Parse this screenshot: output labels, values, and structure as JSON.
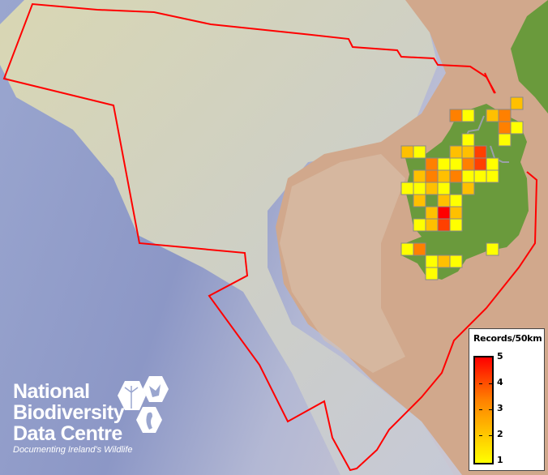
{
  "legend": {
    "title": "Records/50km",
    "labels": [
      "5",
      "4",
      "3",
      "2",
      "1"
    ],
    "color_scale": {
      "1": "#ffff00",
      "2": "#ffc000",
      "3": "#ff8000",
      "4": "#ff4000",
      "5": "#ff0000"
    }
  },
  "logo": {
    "line1": "National",
    "line2": "Biodiversity",
    "line3": "Data Centre",
    "tagline": "Documenting Ireland's Wildlife"
  },
  "colors": {
    "boundary": "#ff0000",
    "cell_border": "#888888",
    "land": "#6a9a3c",
    "sea": "#8f9cc8"
  },
  "records_grid": {
    "description_unit": "records per 50km square",
    "cells": [
      {
        "row": 0,
        "col": 9,
        "value": 2
      },
      {
        "row": 1,
        "col": 4,
        "value": 3
      },
      {
        "row": 1,
        "col": 5,
        "value": 1
      },
      {
        "row": 1,
        "col": 7,
        "value": 2
      },
      {
        "row": 1,
        "col": 8,
        "value": 3
      },
      {
        "row": 2,
        "col": 8,
        "value": 3
      },
      {
        "row": 2,
        "col": 9,
        "value": 1
      },
      {
        "row": 3,
        "col": 5,
        "value": 1
      },
      {
        "row": 3,
        "col": 8,
        "value": 1
      },
      {
        "row": 4,
        "col": 0,
        "value": 2
      },
      {
        "row": 4,
        "col": 1,
        "value": 1
      },
      {
        "row": 4,
        "col": 4,
        "value": 2
      },
      {
        "row": 4,
        "col": 5,
        "value": 2
      },
      {
        "row": 4,
        "col": 6,
        "value": 4
      },
      {
        "row": 5,
        "col": 2,
        "value": 3
      },
      {
        "row": 5,
        "col": 3,
        "value": 1
      },
      {
        "row": 5,
        "col": 4,
        "value": 1
      },
      {
        "row": 5,
        "col": 5,
        "value": 3
      },
      {
        "row": 5,
        "col": 6,
        "value": 4
      },
      {
        "row": 5,
        "col": 7,
        "value": 1
      },
      {
        "row": 6,
        "col": 1,
        "value": 2
      },
      {
        "row": 6,
        "col": 2,
        "value": 3
      },
      {
        "row": 6,
        "col": 3,
        "value": 2
      },
      {
        "row": 6,
        "col": 4,
        "value": 3
      },
      {
        "row": 6,
        "col": 5,
        "value": 1
      },
      {
        "row": 6,
        "col": 6,
        "value": 1
      },
      {
        "row": 6,
        "col": 7,
        "value": 1
      },
      {
        "row": 7,
        "col": 0,
        "value": 1
      },
      {
        "row": 7,
        "col": 1,
        "value": 1
      },
      {
        "row": 7,
        "col": 2,
        "value": 2
      },
      {
        "row": 7,
        "col": 3,
        "value": 1
      },
      {
        "row": 7,
        "col": 5,
        "value": 2
      },
      {
        "row": 8,
        "col": 1,
        "value": 2
      },
      {
        "row": 8,
        "col": 3,
        "value": 2
      },
      {
        "row": 8,
        "col": 4,
        "value": 1
      },
      {
        "row": 9,
        "col": 2,
        "value": 2
      },
      {
        "row": 9,
        "col": 3,
        "value": 5
      },
      {
        "row": 9,
        "col": 4,
        "value": 2
      },
      {
        "row": 10,
        "col": 1,
        "value": 1
      },
      {
        "row": 10,
        "col": 2,
        "value": 2
      },
      {
        "row": 10,
        "col": 3,
        "value": 4
      },
      {
        "row": 10,
        "col": 4,
        "value": 1
      },
      {
        "row": 12,
        "col": 0,
        "value": 1
      },
      {
        "row": 12,
        "col": 1,
        "value": 3
      },
      {
        "row": 12,
        "col": 7,
        "value": 1
      },
      {
        "row": 13,
        "col": 2,
        "value": 1
      },
      {
        "row": 13,
        "col": 3,
        "value": 2
      },
      {
        "row": 13,
        "col": 4,
        "value": 1
      },
      {
        "row": 14,
        "col": 2,
        "value": 1
      }
    ]
  }
}
